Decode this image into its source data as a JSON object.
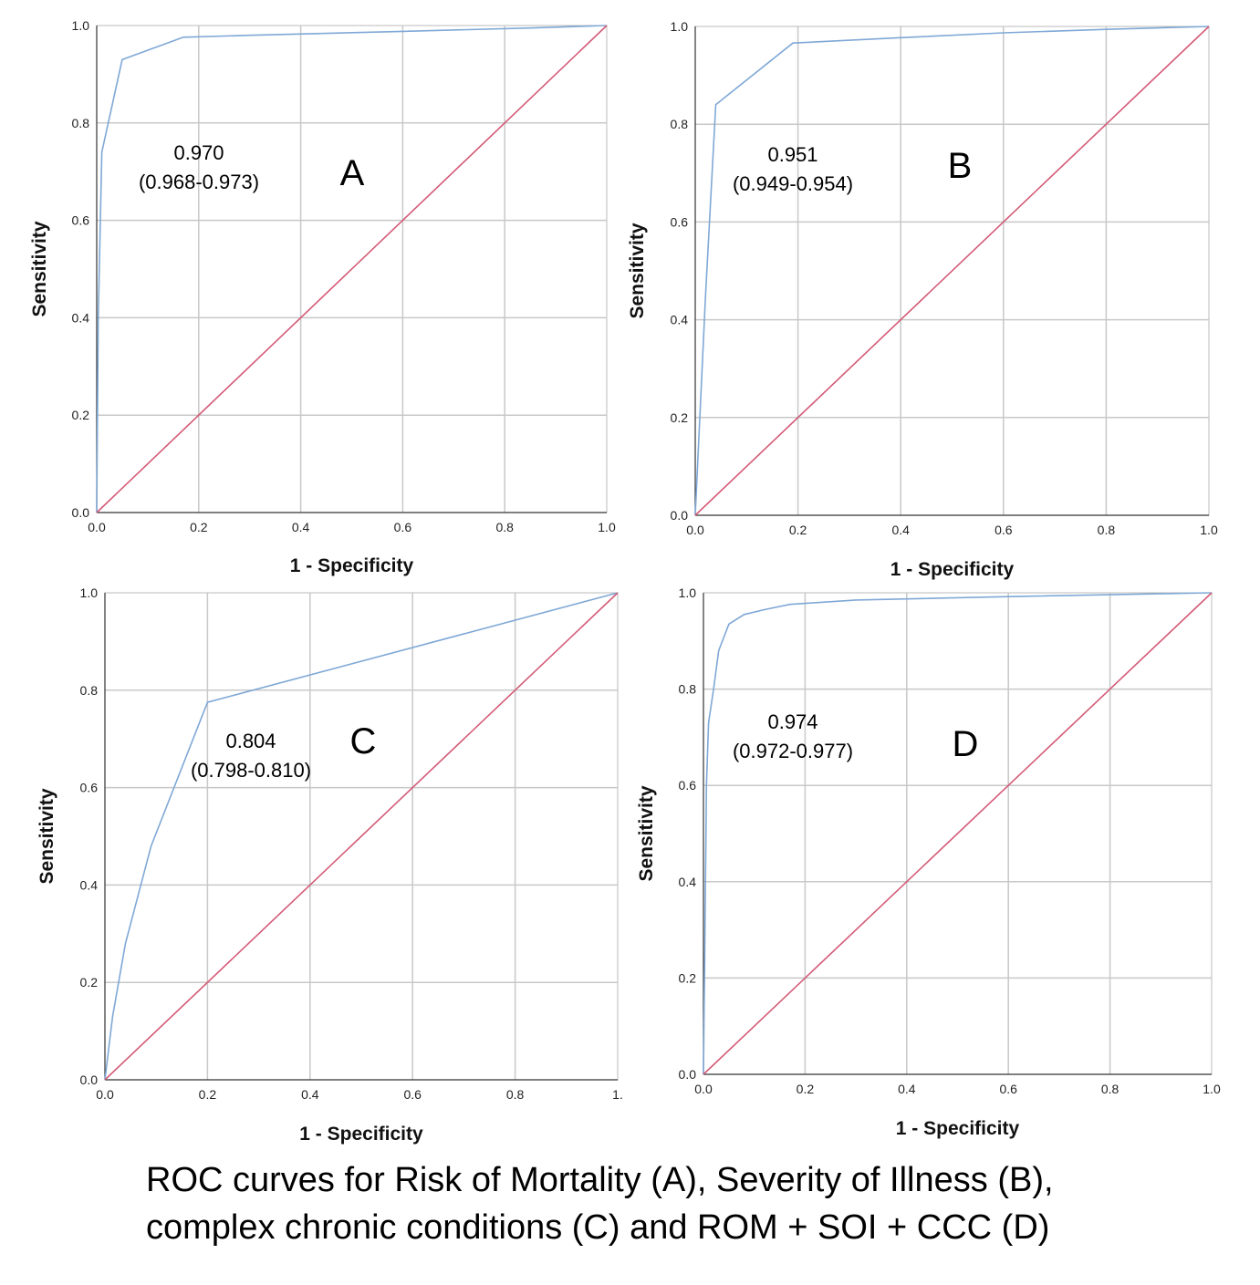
{
  "chart_data": [
    {
      "type": "line",
      "panel_label": "A",
      "xlabel": "1 - Specificity",
      "ylabel": "Sensitivity",
      "xlim": [
        0,
        1
      ],
      "ylim": [
        0,
        1
      ],
      "x_ticks": [
        "0.0",
        "0.2",
        "0.4",
        "0.6",
        "0.8",
        "1.0"
      ],
      "y_ticks": [
        "0.0",
        "0.2",
        "0.4",
        "0.6",
        "0.8",
        "1.0"
      ],
      "grid": true,
      "auc_text": "0.970",
      "ci_text": "(0.968-0.973)",
      "series": [
        {
          "color": "#7fa8d6",
          "x": [
            0,
            0.003,
            0.01,
            0.05,
            0.17,
            0.3,
            0.6,
            0.85,
            1.0
          ],
          "y": [
            0,
            0.4,
            0.74,
            0.93,
            0.976,
            0.98,
            0.988,
            0.995,
            1.0
          ]
        },
        {
          "color": "#d45a78",
          "x": [
            0,
            1
          ],
          "y": [
            0,
            1
          ]
        }
      ]
    },
    {
      "type": "line",
      "panel_label": "B",
      "xlabel": "1 - Specificity",
      "ylabel": "Sensitivity",
      "xlim": [
        0,
        1
      ],
      "ylim": [
        0,
        1
      ],
      "x_ticks": [
        "0.0",
        "0.2",
        "0.4",
        "0.6",
        "0.8",
        "1.0"
      ],
      "y_ticks": [
        "0.0",
        "0.2",
        "0.4",
        "0.6",
        "0.8",
        "1.0"
      ],
      "grid": true,
      "auc_text": "0.951",
      "ci_text": "(0.949-0.954)",
      "series": [
        {
          "color": "#7fa8d6",
          "x": [
            0,
            0.02,
            0.04,
            0.19,
            0.4,
            0.6,
            0.8,
            1.0
          ],
          "y": [
            0,
            0.45,
            0.84,
            0.966,
            0.977,
            0.987,
            0.994,
            1.0
          ]
        },
        {
          "color": "#d45a78",
          "x": [
            0,
            1
          ],
          "y": [
            0,
            1
          ]
        }
      ]
    },
    {
      "type": "line",
      "panel_label": "C",
      "xlabel": "1 - Specificity",
      "ylabel": "Sensitivity",
      "xlim": [
        0,
        1
      ],
      "ylim": [
        0,
        1
      ],
      "x_ticks": [
        "0.0",
        "0.2",
        "0.4",
        "0.6",
        "0.8",
        "1."
      ],
      "y_ticks": [
        "0.0",
        "0.2",
        "0.4",
        "0.6",
        "0.8",
        "1.0"
      ],
      "grid": true,
      "auc_text": "0.804",
      "ci_text": "(0.798-0.810)",
      "series": [
        {
          "color": "#7fa8d6",
          "x": [
            0,
            0.015,
            0.04,
            0.09,
            0.2,
            1.0
          ],
          "y": [
            0,
            0.13,
            0.28,
            0.48,
            0.775,
            1.0
          ]
        },
        {
          "color": "#d45a78",
          "x": [
            0,
            1
          ],
          "y": [
            0,
            1
          ]
        }
      ]
    },
    {
      "type": "line",
      "panel_label": "D",
      "xlabel": "1 - Specificity",
      "ylabel": "Sensitivity",
      "xlim": [
        0,
        1
      ],
      "ylim": [
        0,
        1
      ],
      "x_ticks": [
        "0.0",
        "0.2",
        "0.4",
        "0.6",
        "0.8",
        "1.0"
      ],
      "y_ticks": [
        "0.0",
        "0.2",
        "0.4",
        "0.6",
        "0.8",
        "1.0"
      ],
      "grid": true,
      "auc_text": "0.974",
      "ci_text": "(0.972-0.977)",
      "series": [
        {
          "color": "#7fa8d6",
          "x": [
            0,
            0.003,
            0.006,
            0.01,
            0.02,
            0.03,
            0.05,
            0.08,
            0.12,
            0.17,
            0.3,
            0.6,
            1.0
          ],
          "y": [
            0,
            0.3,
            0.6,
            0.73,
            0.8,
            0.88,
            0.935,
            0.955,
            0.965,
            0.976,
            0.985,
            0.992,
            1.0
          ]
        },
        {
          "color": "#d45a78",
          "x": [
            0,
            1
          ],
          "y": [
            0,
            1
          ]
        }
      ]
    }
  ],
  "caption": {
    "line1": "ROC curves for Risk of Mortality (A), Severity of Illness (B),",
    "line2": "complex chronic conditions (C) and ROM + SOI + CCC (D)"
  }
}
